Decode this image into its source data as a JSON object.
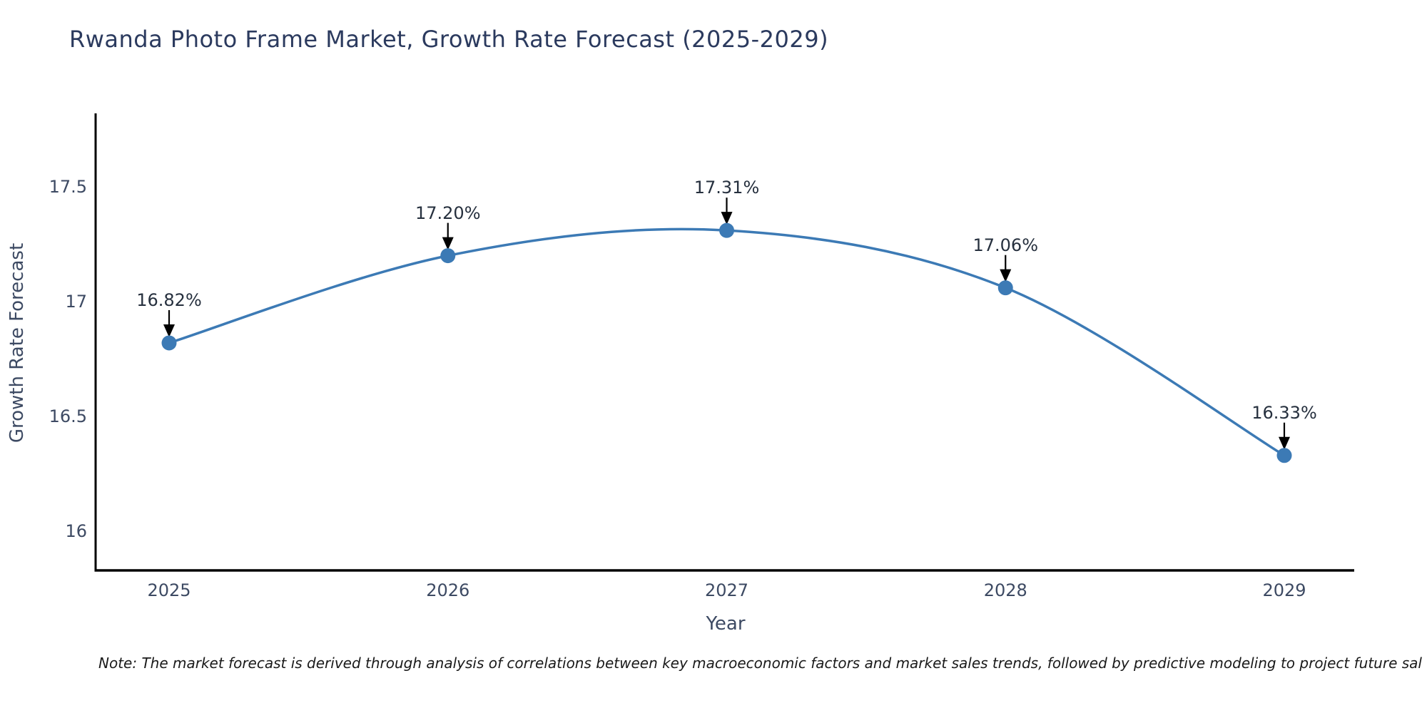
{
  "title": "Rwanda Photo Frame Market, Growth Rate Forecast (2025-2029)",
  "note": "Note: The market forecast is derived through analysis of correlations between key macroeconomic factors and market sales trends, followed by predictive modeling to project future sal",
  "colors": {
    "line": "#3c7ab5",
    "marker": "#3c7ab5",
    "spine": "#000000",
    "arrow": "#000000",
    "title_text": "#2b3a5e",
    "tick_text": "#3d4a63",
    "annotation_text": "#26303e",
    "background": "#ffffff"
  },
  "chart_data": {
    "type": "line",
    "title": "Rwanda Photo Frame Market, Growth Rate Forecast (2025-2029)",
    "xlabel": "Year",
    "ylabel": "Growth Rate Forecast",
    "x": [
      2025,
      2026,
      2027,
      2028,
      2029
    ],
    "values": [
      16.82,
      17.2,
      17.31,
      17.06,
      16.33
    ],
    "point_labels": [
      "16.82%",
      "17.20%",
      "17.31%",
      "17.06%",
      "16.33%"
    ],
    "x_tick_labels": [
      "2025",
      "2026",
      "2027",
      "2028",
      "2029"
    ],
    "y_ticks": [
      17.5,
      17.0,
      16.5,
      16.0
    ],
    "y_tick_labels": [
      "17.5",
      "17",
      "16.5",
      "16"
    ],
    "xlim": [
      2024.74,
      2029.25
    ],
    "ylim": [
      15.83,
      17.82
    ],
    "grid": false,
    "legend": false,
    "curve": "smooth",
    "marker": "circle",
    "annotations_have_arrows": true
  }
}
